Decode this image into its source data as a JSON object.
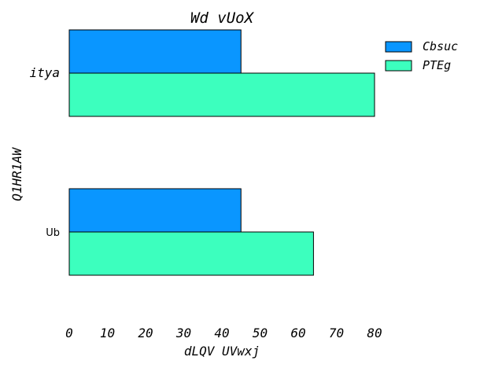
{
  "chart_data": {
    "type": "bar",
    "orientation": "horizontal",
    "title": "Wd vUoX",
    "xlabel": "dLQV UVwxj",
    "ylabel": "Q1HR1AW",
    "categories": [
      "itya",
      "Ub"
    ],
    "series": [
      {
        "name": "Cbsuc",
        "values": [
          45,
          45
        ],
        "color": "#0a96ff"
      },
      {
        "name": "PTEg",
        "values": [
          80,
          64
        ],
        "color": "#3cffbe"
      }
    ],
    "xlim": [
      0,
      80
    ],
    "xticks": [
      "0",
      "10",
      "20",
      "30",
      "40",
      "50",
      "60",
      "70",
      "80"
    ],
    "grid": false,
    "legend": "top-right"
  }
}
